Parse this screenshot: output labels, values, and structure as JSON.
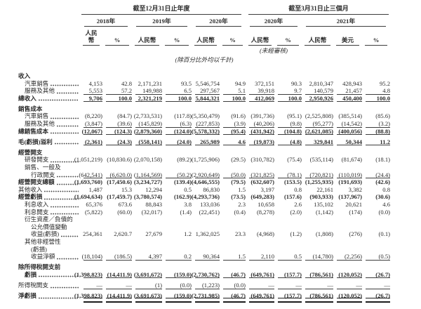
{
  "table": {
    "header": {
      "period_annual": "截至12月31日止年度",
      "period_interim": "截至3月31日止三個月",
      "year_groups": [
        {
          "label": "2018年",
          "cols": [
            "人民幣",
            "%"
          ]
        },
        {
          "label": "2019年",
          "cols": [
            "人民幣",
            "%"
          ]
        },
        {
          "label": "2020年",
          "cols": [
            "人民幣",
            "%"
          ]
        },
        {
          "label": "2020年",
          "cols": [
            "人民幣",
            "%"
          ]
        },
        {
          "label": "2021年",
          "cols": [
            "人民幣",
            "美元",
            "%"
          ]
        }
      ],
      "unaudited_note": "(未經審核)",
      "unit_note": "(除百分比外均以千計)"
    },
    "rows": [
      {
        "label": "收入",
        "style": "section",
        "bold": true
      },
      {
        "label": "汽車銷售",
        "indent": 1,
        "leader_dots": true,
        "values": [
          "4,153",
          "42.8",
          "2,171,231",
          "93.5",
          "5,546,754",
          "94.9",
          "372,151",
          "90.3",
          "2,810,347",
          "428,943",
          "95.2"
        ]
      },
      {
        "label": "服務及其他",
        "indent": 1,
        "leader_dots": true,
        "underline": true,
        "values": [
          "5,553",
          "57.2",
          "149,988",
          "6.5",
          "297,567",
          "5.1",
          "39,918",
          "9.7",
          "140,579",
          "21,457",
          "4.8"
        ]
      },
      {
        "label": "總收入",
        "bold": true,
        "leader_dots": true,
        "underline": true,
        "values": [
          "9,706",
          "100.0",
          "2,321,219",
          "100.0",
          "5,844,321",
          "100.0",
          "412,069",
          "100.0",
          "2,950,926",
          "450,400",
          "100.0"
        ]
      },
      {
        "label": "銷售成本",
        "style": "section",
        "bold": true,
        "spacing_before": true
      },
      {
        "label": "汽車銷售",
        "indent": 1,
        "leader_dots": true,
        "values": [
          "(8,220)",
          "(84.7)",
          "(2,733,531)",
          "(117.8)",
          "(5,350,479)",
          "(91.6)",
          "(391,736)",
          "(95.1)",
          "(2,525,808)",
          "(385,514)",
          "(85.6)"
        ]
      },
      {
        "label": "服務及其他",
        "indent": 1,
        "leader_dots": true,
        "underline": true,
        "values": [
          "(3,847)",
          "(39.6)",
          "(145,829)",
          "(6.3)",
          "(227,853)",
          "(3.9)",
          "(40,206)",
          "(9.8)",
          "(95,277)",
          "(14,542)",
          "(3.2)"
        ]
      },
      {
        "label": "總銷售成本",
        "bold": true,
        "leader_dots": true,
        "underline": true,
        "values": [
          "(12,067)",
          "(124.3)",
          "(2,879,360)",
          "(124.0)",
          "(5,578,332)",
          "(95.4)",
          "(431,942)",
          "(104.8)",
          "(2,621,085)",
          "(400,056)",
          "(88.8)"
        ]
      },
      {
        "label": "毛(虧損)溢利",
        "bold": true,
        "leader_dots": true,
        "underline": true,
        "spacing_before": true,
        "values": [
          "(2,361)",
          "(24.3)",
          "(558,141)",
          "(24.0)",
          "265,989",
          "4.6",
          "(19,873)",
          "(4.8)",
          "329,841",
          "50,344",
          "11.2"
        ]
      },
      {
        "label": "經營開支",
        "style": "section",
        "bold": true,
        "spacing_before": true
      },
      {
        "label": "研發開支",
        "indent": 1,
        "leader_dots": true,
        "values": [
          "(1,051,219)",
          "(10,830.6)",
          "(2,070,158)",
          "(89.2)",
          "(1,725,906)",
          "(29.5)",
          "(310,782)",
          "(75.4)",
          "(535,114)",
          "(81,674)",
          "(18.1)"
        ]
      },
      {
        "label": "銷售、一般及",
        "indent": 1,
        "style": "continuation"
      },
      {
        "label": "行政開支",
        "indent": 2,
        "leader_dots": true,
        "underline": true,
        "values": [
          "(642,541)",
          "(6,620.0)",
          "(1,164,569)",
          "(50.2)",
          "(2,920,649)",
          "(50.0)",
          "(321,825)",
          "(78.1)",
          "(720,821)",
          "(110,019)",
          "(24.4)"
        ]
      },
      {
        "label": "經營開支總額",
        "bold": true,
        "leader_dots": true,
        "values": [
          "(1,693,760)",
          "(17,450.6)",
          "(3,234,727)",
          "(139.4)",
          "(4,646,555)",
          "(79.5)",
          "(632,607)",
          "(153.5)",
          "(1,255,935)",
          "(191,693)",
          "(42.6)"
        ]
      },
      {
        "label": "其他收入",
        "leader_dots": true,
        "values": [
          "1,487",
          "15.3",
          "12,294",
          "0.5",
          "86,830",
          "1.5",
          "3,197",
          "0.8",
          "22,161",
          "3,382",
          "0.8"
        ]
      },
      {
        "label": "經營虧損",
        "bold": true,
        "leader_dots": true,
        "values": [
          "(1,694,634)",
          "(17,459.7)",
          "(3,780,574)",
          "(162.9)",
          "(4,293,736)",
          "(73.5)",
          "(649,283)",
          "(157.6)",
          "(903,933)",
          "(137,967)",
          "(30.6)"
        ]
      },
      {
        "label": "利息收入",
        "indent": 1,
        "leader_dots": true,
        "values": [
          "65,376",
          "673.6",
          "88,843",
          "3.8",
          "133,036",
          "2.3",
          "10,658",
          "2.6",
          "135,102",
          "20,621",
          "4.6"
        ]
      },
      {
        "label": "利息開支",
        "indent": 1,
        "leader_dots": true,
        "values": [
          "(5,822)",
          "(60.0)",
          "(32,017)",
          "(1.4)",
          "(22,451)",
          "(0.4)",
          "(8,278)",
          "(2.0)",
          "(1,142)",
          "(174)",
          "(0.0)"
        ]
      },
      {
        "label": "衍生資產／負債的",
        "indent": 1,
        "style": "continuation"
      },
      {
        "label": "公允價值變動",
        "indent": 2,
        "style": "continuation"
      },
      {
        "label": "收益(虧損)",
        "indent": 2,
        "leader_dots": true,
        "values": [
          "254,361",
          "2,620.7",
          "27,679",
          "1.2",
          "1,362,025",
          "23.3",
          "(4,968)",
          "(1.2)",
          "(1,808)",
          "(276)",
          "(0.1)"
        ]
      },
      {
        "label": "其他非經營性",
        "indent": 1,
        "style": "continuation"
      },
      {
        "label": "(虧損)",
        "indent": 2,
        "style": "continuation"
      },
      {
        "label": "收益淨額",
        "indent": 2,
        "leader_dots": true,
        "underline": true,
        "values": [
          "(18,104)",
          "(186.5)",
          "4,397",
          "0.2",
          "90,364",
          "1.5",
          "2,110",
          "0.5",
          "(14,780)",
          "(2,256)",
          "(0.5)"
        ]
      },
      {
        "label": "除所得稅開支前",
        "bold": true,
        "style": "continuation",
        "spacing_before": true
      },
      {
        "label": "虧損",
        "bold": true,
        "indent": 1,
        "leader_dots": true,
        "underline": true,
        "values": [
          "(1,398,823)",
          "(14,411.9)",
          "(3,691,672)",
          "(159.0)",
          "(2,730,762)",
          "(46.7)",
          "(649,761)",
          "(157.7)",
          "(786,561)",
          "(120,052)",
          "(26.7)"
        ]
      },
      {
        "label": "所得稅開支",
        "leader_dots": true,
        "underline": true,
        "spacing_before": true,
        "values": [
          "—",
          "—",
          "(1)",
          "(0.0)",
          "(1,223)",
          "(0.0)",
          "—",
          "—",
          "—",
          "—",
          "—"
        ]
      },
      {
        "label": "淨虧損",
        "bold": true,
        "leader_dots": true,
        "double_underline": true,
        "spacing_before": true,
        "values": [
          "(1,398,823)",
          "(14,411.9)",
          "(3,691,673)",
          "(159.0)",
          "(2,731,985)",
          "(46.7)",
          "(649,761)",
          "(157.7)",
          "(786,561)",
          "(120,052)",
          "(26.7)"
        ]
      }
    ]
  }
}
